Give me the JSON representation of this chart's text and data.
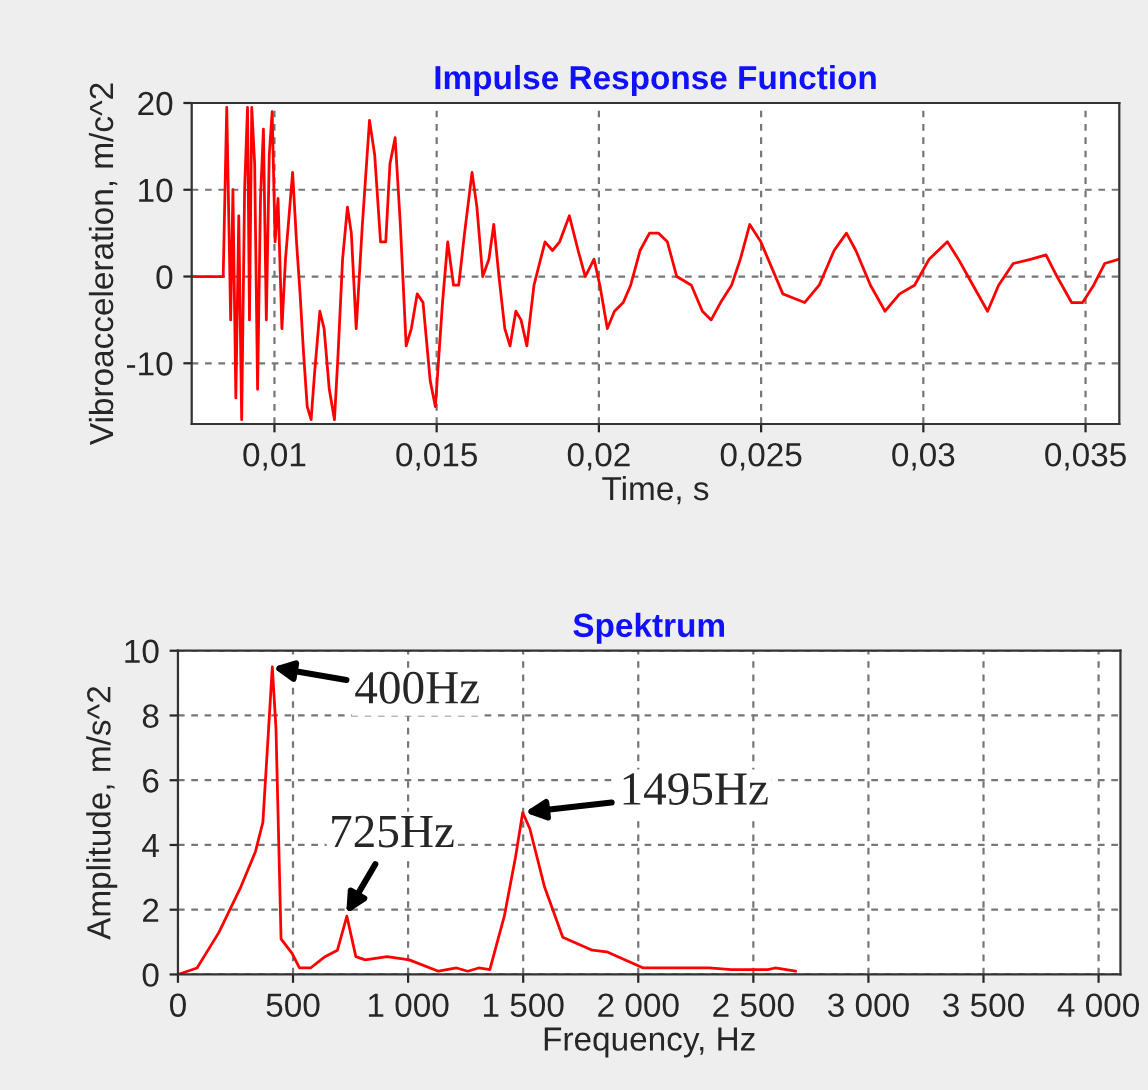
{
  "chart_data": [
    {
      "type": "line",
      "title": "Impulse Response Function",
      "xlabel": "Time, s",
      "ylabel": "Vibroacceleration, m/c^2",
      "xlim": [
        0.00745,
        0.03604
      ],
      "ylim": [
        -17,
        20
      ],
      "xticks": [
        {
          "value": 0.01,
          "label": "0,01"
        },
        {
          "value": 0.015,
          "label": "0,015"
        },
        {
          "value": 0.02,
          "label": "0,02"
        },
        {
          "value": 0.025,
          "label": "0,025"
        },
        {
          "value": 0.03,
          "label": "0,03"
        },
        {
          "value": 0.035,
          "label": "0,035"
        }
      ],
      "yticks": [
        -10,
        0,
        10,
        20
      ],
      "grid": true,
      "series": [
        {
          "color": "#ff0000",
          "x": [
            0.00745,
            0.00842,
            0.00853,
            0.00865,
            0.00872,
            0.00881,
            0.0089,
            0.00899,
            0.00908,
            0.00917,
            0.00923,
            0.0093,
            0.00939,
            0.00948,
            0.00957,
            0.00966,
            0.00975,
            0.00984,
            0.00993,
            0.01002,
            0.01011,
            0.01023,
            0.01034,
            0.01045,
            0.01056,
            0.01068,
            0.01079,
            0.0109,
            0.01101,
            0.01113,
            0.01124,
            0.0114,
            0.01153,
            0.01169,
            0.01185,
            0.01196,
            0.0121,
            0.01225,
            0.01237,
            0.01252,
            0.01271,
            0.01293,
            0.01309,
            0.01327,
            0.01343,
            0.01356,
            0.01372,
            0.01388,
            0.01406,
            0.01422,
            0.0144,
            0.01458,
            0.0148,
            0.01496,
            0.01507,
            0.01518,
            0.01534,
            0.01552,
            0.01568,
            0.01586,
            0.01609,
            0.01624,
            0.01642,
            0.01661,
            0.01676,
            0.01692,
            0.0171,
            0.01726,
            0.01744,
            0.0176,
            0.01778,
            0.018,
            0.01834,
            0.01857,
            0.01879,
            0.01909,
            0.01936,
            0.01958,
            0.01985,
            0.02003,
            0.02026,
            0.02048,
            0.02075,
            0.02098,
            0.02127,
            0.02156,
            0.02184,
            0.02211,
            0.0224,
            0.02285,
            0.02319,
            0.02346,
            0.02375,
            0.02409,
            0.02436,
            0.02465,
            0.02499,
            0.02533,
            0.02567,
            0.02601,
            0.02634,
            0.02679,
            0.02725,
            0.02763,
            0.02792,
            0.02837,
            0.02882,
            0.02927,
            0.02973,
            0.03018,
            0.03074,
            0.03108,
            0.03153,
            0.03198,
            0.03232,
            0.03277,
            0.03333,
            0.03378,
            0.03412,
            0.03457,
            0.03491,
            0.03525,
            0.03559,
            0.03604
          ],
          "values": [
            0,
            0,
            19.5,
            -5,
            10,
            -14,
            7,
            -16.5,
            10,
            19.5,
            -5,
            19.5,
            13,
            -13,
            9,
            17,
            -5,
            14,
            19,
            4,
            9,
            -6,
            2,
            7,
            12,
            4,
            -2,
            -9,
            -15,
            -16.5,
            -11,
            -4,
            -6,
            -13,
            -16.5,
            -9,
            2,
            8,
            5,
            -6,
            6,
            18,
            14,
            4,
            4,
            13,
            16,
            6,
            -8,
            -6,
            -2,
            -3,
            -12,
            -15,
            -9,
            -3,
            4,
            -1,
            -1,
            5,
            12,
            8,
            0,
            2,
            6,
            0,
            -6,
            -8,
            -4,
            -5,
            -8,
            -1,
            4,
            3,
            4,
            7,
            3,
            0,
            2,
            -1,
            -6,
            -4,
            -3,
            -1,
            3,
            5,
            5,
            4,
            0,
            -1,
            -4,
            -5,
            -3,
            -1,
            2,
            6,
            4,
            1,
            -2,
            -2.5,
            -3,
            -1,
            3,
            5,
            3,
            -1,
            -4,
            -2,
            -1,
            2,
            4,
            2,
            -1,
            -4,
            -1,
            1.5,
            2,
            2.5,
            0,
            -3,
            -3,
            -1,
            1.5,
            2
          ]
        }
      ]
    },
    {
      "type": "line",
      "title": "Spektrum",
      "xlabel": "Frequency, Hz",
      "ylabel": "Amplitude, m/s^2",
      "xlim": [
        0,
        4095
      ],
      "ylim": [
        0,
        10
      ],
      "xticks": [
        0,
        500,
        {
          "value": 1000,
          "label": "1 000"
        },
        {
          "value": 1500,
          "label": "1 500"
        },
        {
          "value": 2000,
          "label": "2 000"
        },
        {
          "value": 2500,
          "label": "2 500"
        },
        {
          "value": 3000,
          "label": "3 000"
        },
        {
          "value": 3500,
          "label": "3 500"
        },
        {
          "value": 4000,
          "label": "4 000"
        }
      ],
      "yticks": [
        0,
        2,
        4,
        6,
        8,
        10
      ],
      "grid": true,
      "annotations": [
        {
          "text": "400Hz",
          "x": 400,
          "y": 9.5
        },
        {
          "text": "725Hz",
          "x": 725,
          "y": 1.8
        },
        {
          "text": "1495Hz",
          "x": 1495,
          "y": 5.0
        }
      ],
      "series": [
        {
          "color": "#ff0000",
          "x": [
            0,
            83,
            178,
            273,
            337,
            369,
            394,
            410,
            426,
            448,
            496,
            528,
            576,
            639,
            693,
            734,
            773,
            814,
            909,
            1005,
            1132,
            1211,
            1259,
            1307,
            1355,
            1418,
            1466,
            1498,
            1529,
            1593,
            1672,
            1800,
            1863,
            2022,
            2150,
            2308,
            2404,
            2563,
            2595,
            2684
          ],
          "values": [
            0,
            0.2,
            1.3,
            2.7,
            3.8,
            4.7,
            7.6,
            9.5,
            7.6,
            1.1,
            0.65,
            0.2,
            0.2,
            0.55,
            0.75,
            1.8,
            0.55,
            0.45,
            0.55,
            0.45,
            0.1,
            0.2,
            0.1,
            0.2,
            0.15,
            1.8,
            3.6,
            5.0,
            4.5,
            2.7,
            1.15,
            0.75,
            0.7,
            0.2,
            0.2,
            0.2,
            0.15,
            0.15,
            0.2,
            0.1
          ]
        }
      ]
    }
  ]
}
